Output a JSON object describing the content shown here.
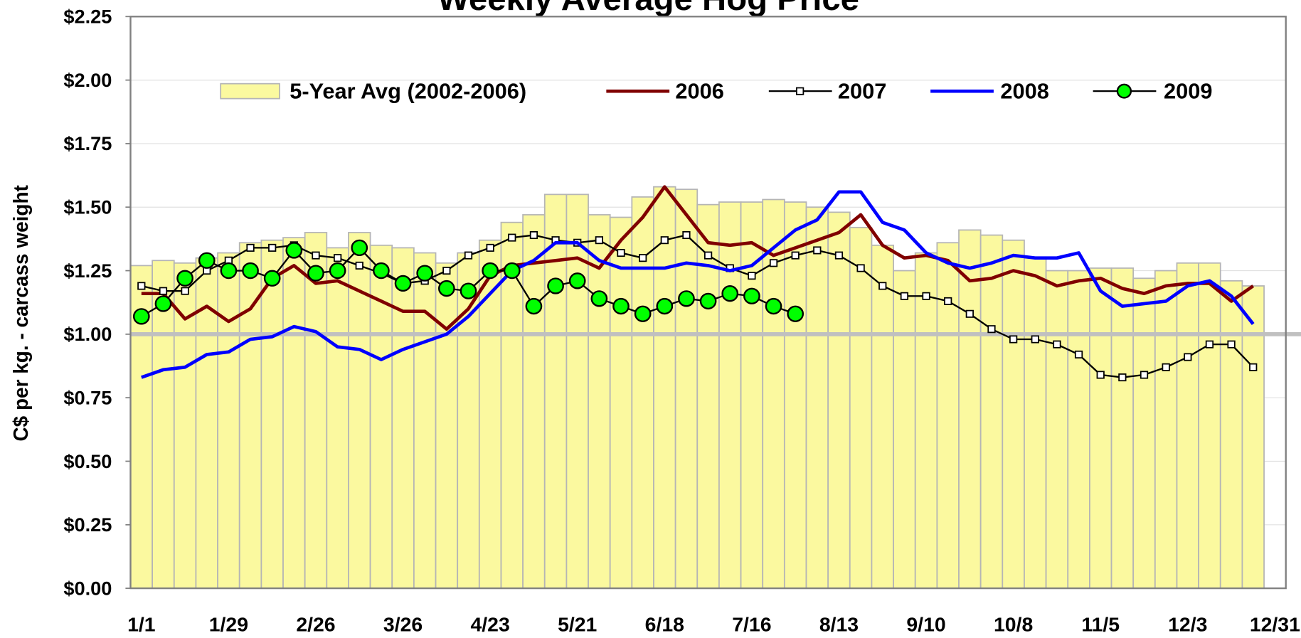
{
  "chart_data": {
    "type": "bar_line",
    "title": "Weekly Average Hog Price",
    "y_label": "C$ per kg. -  carcass weight",
    "categories": [
      "1/1",
      null,
      null,
      null,
      "1/29",
      null,
      null,
      null,
      "2/26",
      null,
      null,
      null,
      "3/26",
      null,
      null,
      null,
      "4/23",
      null,
      null,
      null,
      "5/21",
      null,
      null,
      null,
      "6/18",
      null,
      null,
      null,
      "7/16",
      null,
      null,
      null,
      "8/13",
      null,
      null,
      null,
      "9/10",
      null,
      null,
      null,
      "10/8",
      null,
      null,
      null,
      "11/5",
      null,
      null,
      null,
      "12/3",
      null,
      null,
      null,
      "12/31"
    ],
    "ylim": [
      0,
      2.25
    ],
    "yticks": [
      {
        "value": 0,
        "label": "$0.00"
      },
      {
        "value": 0.25,
        "label": "$0.25"
      },
      {
        "value": 0.5,
        "label": "$0.50"
      },
      {
        "value": 0.75,
        "label": "$0.75"
      },
      {
        "value": 1,
        "label": "$1.00"
      },
      {
        "value": 1.25,
        "label": "$1.25"
      },
      {
        "value": 1.5,
        "label": "$1.50"
      },
      {
        "value": 1.75,
        "label": "$1.75"
      },
      {
        "value": 2,
        "label": "$2.00"
      },
      {
        "value": 2.25,
        "label": "$2.25"
      }
    ],
    "grid": true,
    "reference_line": 1,
    "series": [
      {
        "name": "5-Year Avg (2002-2006)",
        "type": "bar",
        "color": "#fbf99f",
        "values": [
          1.27,
          1.29,
          1.28,
          1.3,
          1.32,
          1.36,
          1.37,
          1.38,
          1.4,
          1.34,
          1.4,
          1.35,
          1.34,
          1.32,
          1.28,
          1.32,
          1.37,
          1.44,
          1.47,
          1.55,
          1.55,
          1.47,
          1.46,
          1.54,
          1.58,
          1.57,
          1.51,
          1.52,
          1.52,
          1.53,
          1.52,
          1.5,
          1.48,
          1.42,
          1.35,
          1.25,
          1.32,
          1.36,
          1.41,
          1.39,
          1.37,
          1.3,
          1.25,
          1.25,
          1.26,
          1.26,
          1.22,
          1.25,
          1.28,
          1.28,
          1.21,
          1.19,
          null
        ]
      },
      {
        "name": "2006",
        "type": "line",
        "color": "#800000",
        "values": [
          1.16,
          1.16,
          1.06,
          1.11,
          1.05,
          1.1,
          1.22,
          1.27,
          1.2,
          1.21,
          1.17,
          1.13,
          1.09,
          1.09,
          1.02,
          1.1,
          1.23,
          1.27,
          1.28,
          1.29,
          1.3,
          1.26,
          1.37,
          1.46,
          1.58,
          1.47,
          1.36,
          1.35,
          1.36,
          1.31,
          1.34,
          1.37,
          1.4,
          1.47,
          1.35,
          1.3,
          1.31,
          1.29,
          1.21,
          1.22,
          1.25,
          1.23,
          1.19,
          1.21,
          1.22,
          1.18,
          1.16,
          1.19,
          1.2,
          1.2,
          1.13,
          1.19,
          null
        ]
      },
      {
        "name": "2007",
        "type": "line",
        "color": "#000000",
        "marker": "square",
        "values": [
          1.19,
          1.17,
          1.17,
          1.25,
          1.29,
          1.34,
          1.34,
          1.35,
          1.31,
          1.3,
          1.27,
          1.24,
          1.2,
          1.21,
          1.25,
          1.31,
          1.34,
          1.38,
          1.39,
          1.37,
          1.36,
          1.37,
          1.32,
          1.3,
          1.37,
          1.39,
          1.31,
          1.26,
          1.23,
          1.28,
          1.31,
          1.33,
          1.31,
          1.26,
          1.19,
          1.15,
          1.15,
          1.13,
          1.08,
          1.02,
          0.98,
          0.98,
          0.96,
          0.92,
          0.84,
          0.83,
          0.84,
          0.87,
          0.91,
          0.96,
          0.96,
          0.87,
          null
        ]
      },
      {
        "name": "2008",
        "type": "line",
        "color": "#0000ff",
        "values": [
          0.83,
          0.86,
          0.87,
          0.92,
          0.93,
          0.98,
          0.99,
          1.03,
          1.01,
          0.95,
          0.94,
          0.9,
          0.94,
          0.97,
          1.0,
          1.07,
          1.16,
          1.25,
          1.29,
          1.36,
          1.36,
          1.29,
          1.26,
          1.26,
          1.26,
          1.28,
          1.27,
          1.25,
          1.27,
          1.34,
          1.41,
          1.45,
          1.56,
          1.56,
          1.44,
          1.41,
          1.32,
          1.28,
          1.26,
          1.28,
          1.31,
          1.3,
          1.3,
          1.32,
          1.17,
          1.11,
          1.12,
          1.13,
          1.19,
          1.21,
          1.15,
          1.04,
          null
        ]
      },
      {
        "name": "2009",
        "type": "line",
        "color": "#000000",
        "marker": "circle",
        "marker_color": "#00ff00",
        "values": [
          1.07,
          1.12,
          1.22,
          1.29,
          1.25,
          1.25,
          1.22,
          1.33,
          1.24,
          1.25,
          1.34,
          1.25,
          1.2,
          1.24,
          1.18,
          1.17,
          1.25,
          1.25,
          1.11,
          1.19,
          1.21,
          1.14,
          1.11,
          1.08,
          1.11,
          1.14,
          1.13,
          1.16,
          1.15,
          1.11,
          1.08,
          null,
          null,
          null,
          null,
          null,
          null,
          null,
          null,
          null,
          null,
          null,
          null,
          null,
          null,
          null,
          null,
          null,
          null,
          null,
          null,
          null,
          null
        ]
      }
    ]
  }
}
